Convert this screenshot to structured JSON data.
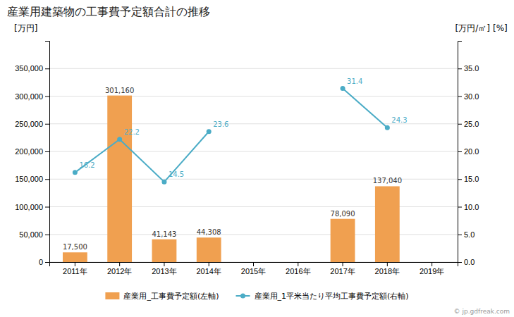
{
  "chart_data": {
    "type": "bar",
    "title": "産業用建築物の工事費予定額合計の推移",
    "ylabel": "[万円]",
    "y2label": "[万円/㎡]",
    "annotations": [
      "[%]",
      "© jp.gdfreak.com"
    ],
    "categories": [
      "2011年",
      "2012年",
      "2013年",
      "2014年",
      "2015年",
      "2016年",
      "2017年",
      "2018年",
      "2019年"
    ],
    "series": [
      {
        "name": "産業用_工事費予定額(左軸)",
        "type": "bar",
        "color": "#f0a050",
        "values": [
          17500,
          301160,
          41143,
          44308,
          0,
          0,
          78090,
          137040,
          0
        ],
        "value_labels": [
          "17,500",
          "301,160",
          "41,143",
          "44,308",
          null,
          null,
          "78,090",
          "137,040",
          null
        ]
      },
      {
        "name": "産業用_1平米当たり平均工事費予定額(右軸)",
        "type": "line",
        "axis": "y2",
        "color": "#4bacc6",
        "marker": "circle",
        "values": [
          16.2,
          22.2,
          14.5,
          23.6,
          null,
          null,
          31.4,
          24.3,
          null
        ]
      }
    ],
    "ylim": [
      0,
      400000
    ],
    "yticks": [
      0,
      {
        "value": 50000,
        "label": "50,000"
      },
      {
        "value": 100000,
        "label": "100,000"
      },
      {
        "value": 150000,
        "label": "150,000"
      },
      {
        "value": 200000,
        "label": "200,000"
      },
      {
        "value": 250000,
        "label": "250,000"
      },
      {
        "value": 300000,
        "label": "300,000"
      },
      {
        "value": 350000,
        "label": "350,000"
      }
    ],
    "y2lim": [
      0,
      40.0
    ],
    "y2ticks": [
      {
        "value": 0.0,
        "label": "0.0"
      },
      {
        "value": 5.0,
        "label": "5.0"
      },
      {
        "value": 10.0,
        "label": "10.0"
      },
      {
        "value": 15.0,
        "label": "15.0"
      },
      {
        "value": 20.0,
        "label": "20.0"
      },
      {
        "value": 25.0,
        "label": "25.0"
      },
      {
        "value": 30.0,
        "label": "30.0"
      },
      {
        "value": 35.0,
        "label": "35.0"
      }
    ],
    "grid": true,
    "legend": "bottom",
    "data_labels": true
  }
}
